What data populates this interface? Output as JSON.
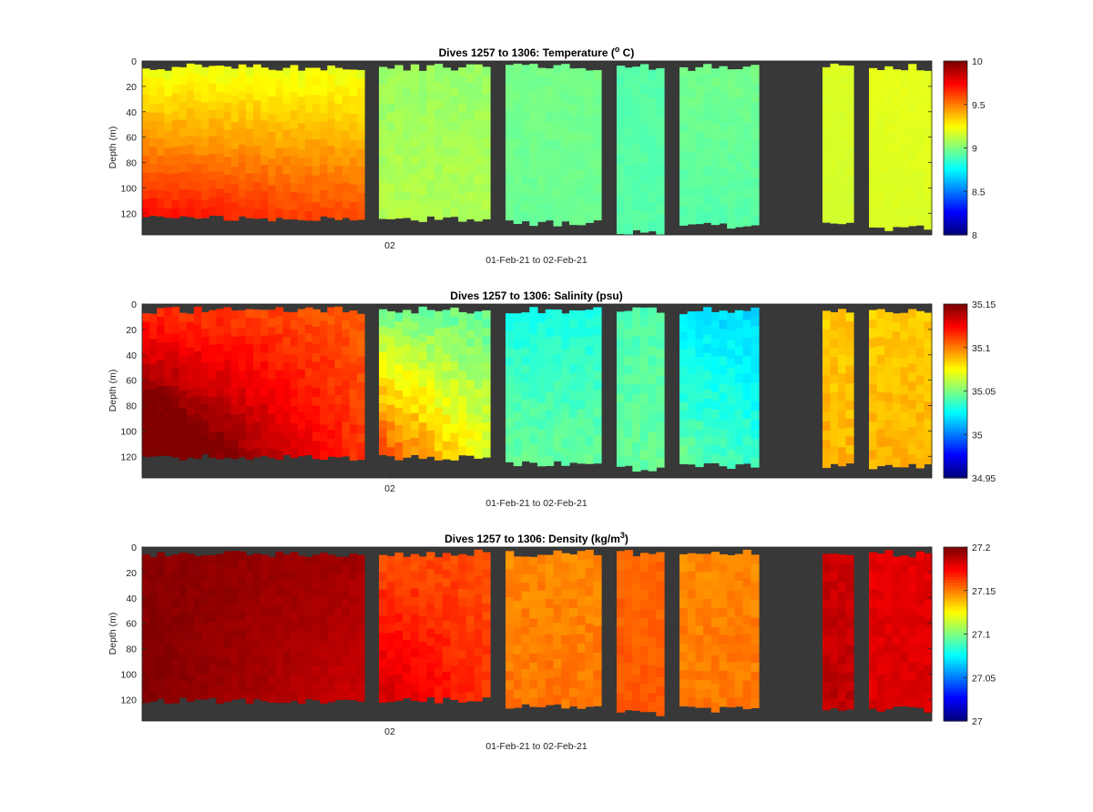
{
  "chart_data": [
    {
      "type": "heatmap",
      "title": "Dives 1257 to 1306: Temperature (",
      "title_sup": "o",
      "title_tail": " C)",
      "ylabel": "Depth (m)",
      "xlabel": "01-Feb-21 to 02-Feb-21",
      "x_tick_label": "02",
      "y_ticks": [
        0,
        20,
        40,
        60,
        80,
        100,
        120
      ],
      "y_range": [
        0,
        137
      ],
      "colorbar": {
        "min": 8,
        "max": 10,
        "tick_labels": [
          "10",
          "9.5",
          "9",
          "8.5",
          "8"
        ],
        "tick_values": [
          10,
          9.5,
          9,
          8.5,
          8
        ]
      },
      "segments": [
        {
          "casts": 30,
          "max_depth": 124,
          "top_value": 9.22,
          "bottom_value": 9.6,
          "left_extra": 0.12,
          "noise": 0.03
        },
        {
          "casts": 14,
          "max_depth": 125,
          "top_value": 9.05,
          "bottom_value": 9.1,
          "left_extra": 0.0,
          "noise": 0.03
        },
        {
          "casts": 12,
          "max_depth": 128,
          "top_value": 8.98,
          "bottom_value": 8.96,
          "left_extra": 0.0,
          "noise": 0.02
        },
        {
          "casts": 6,
          "max_depth": 135,
          "top_value": 8.92,
          "bottom_value": 8.92,
          "left_extra": 0.0,
          "noise": 0.02
        },
        {
          "casts": 10,
          "max_depth": 130,
          "top_value": 8.98,
          "bottom_value": 8.92,
          "left_extra": 0.0,
          "noise": 0.02
        },
        {
          "casts": 4,
          "max_depth": 130,
          "top_value": 9.18,
          "bottom_value": 9.16,
          "left_extra": 0.0,
          "noise": 0.01
        },
        {
          "casts": 8,
          "max_depth": 132,
          "top_value": 9.2,
          "bottom_value": 9.18,
          "left_extra": 0.0,
          "noise": 0.01
        }
      ]
    },
    {
      "type": "heatmap",
      "title": "Dives 1257 to 1306: Salinity (psu)",
      "title_sup": "",
      "title_tail": "",
      "ylabel": "Depth (m)",
      "xlabel": "01-Feb-21 to 02-Feb-21",
      "x_tick_label": "02",
      "y_ticks": [
        0,
        20,
        40,
        60,
        80,
        100,
        120
      ],
      "y_range": [
        0,
        137
      ],
      "colorbar": {
        "min": 34.95,
        "max": 35.15,
        "tick_labels": [
          "35.15",
          "35.1",
          "35.05",
          "35",
          "34.95"
        ],
        "tick_values": [
          35.15,
          35.1,
          35.05,
          35.0,
          34.95
        ]
      },
      "segments": [
        {
          "casts": 30,
          "max_depth": 121,
          "top_value": 35.118,
          "bottom_value": 35.15,
          "left_extra": 0.02,
          "right_drop": 0.035,
          "noise": 0.004
        },
        {
          "casts": 14,
          "max_depth": 121,
          "top_value": 35.05,
          "bottom_value": 35.09,
          "left_extra": 0.02,
          "right_drop": 0.02,
          "noise": 0.006
        },
        {
          "casts": 12,
          "max_depth": 126,
          "top_value": 35.03,
          "bottom_value": 35.045,
          "left_extra": 0.0,
          "right_drop": 0.0,
          "noise": 0.004
        },
        {
          "casts": 6,
          "max_depth": 130,
          "top_value": 35.04,
          "bottom_value": 35.045,
          "left_extra": 0.0,
          "right_drop": 0.0,
          "noise": 0.004
        },
        {
          "casts": 10,
          "max_depth": 128,
          "top_value": 35.02,
          "bottom_value": 35.045,
          "left_extra": 0.0,
          "right_drop": 0.01,
          "noise": 0.005
        },
        {
          "casts": 4,
          "max_depth": 127,
          "top_value": 35.085,
          "bottom_value": 35.09,
          "left_extra": 0.0,
          "right_drop": 0.0,
          "noise": 0.005
        },
        {
          "casts": 8,
          "max_depth": 128,
          "top_value": 35.085,
          "bottom_value": 35.09,
          "left_extra": 0.0,
          "right_drop": 0.0,
          "noise": 0.004
        }
      ]
    },
    {
      "type": "heatmap",
      "title": "Dives 1257 to 1306: Density (kg/m",
      "title_sup": "3",
      "title_tail": ")",
      "ylabel": "Depth (m)",
      "xlabel": "01-Feb-21 to 02-Feb-21",
      "x_tick_label": "02",
      "y_ticks": [
        0,
        20,
        40,
        60,
        80,
        100,
        120
      ],
      "y_range": [
        0,
        137
      ],
      "colorbar": {
        "min": 27,
        "max": 27.2,
        "tick_labels": [
          "27.2",
          "27.15",
          "27.1",
          "27.05",
          "27"
        ],
        "tick_values": [
          27.2,
          27.15,
          27.1,
          27.05,
          27.0
        ]
      },
      "segments": [
        {
          "casts": 30,
          "max_depth": 121,
          "top_value": 27.198,
          "bottom_value": 27.2,
          "left_extra": 0.0,
          "right_drop": 0.015,
          "noise": 0.002
        },
        {
          "casts": 14,
          "max_depth": 121,
          "top_value": 27.16,
          "bottom_value": 27.165,
          "left_extra": 0.02,
          "right_drop": 0.0,
          "noise": 0.004
        },
        {
          "casts": 12,
          "max_depth": 126,
          "top_value": 27.148,
          "bottom_value": 27.152,
          "left_extra": 0.0,
          "right_drop": 0.0,
          "noise": 0.004
        },
        {
          "casts": 6,
          "max_depth": 131,
          "top_value": 27.155,
          "bottom_value": 27.158,
          "left_extra": 0.0,
          "right_drop": 0.0,
          "noise": 0.003
        },
        {
          "casts": 10,
          "max_depth": 128,
          "top_value": 27.148,
          "bottom_value": 27.152,
          "left_extra": 0.0,
          "right_drop": 0.0,
          "noise": 0.004
        },
        {
          "casts": 4,
          "max_depth": 127,
          "top_value": 27.185,
          "bottom_value": 27.188,
          "left_extra": 0.0,
          "right_drop": 0.0,
          "noise": 0.004
        },
        {
          "casts": 8,
          "max_depth": 128,
          "top_value": 27.18,
          "bottom_value": 27.182,
          "left_extra": 0.0,
          "right_drop": 0.0,
          "noise": 0.003
        }
      ]
    }
  ]
}
